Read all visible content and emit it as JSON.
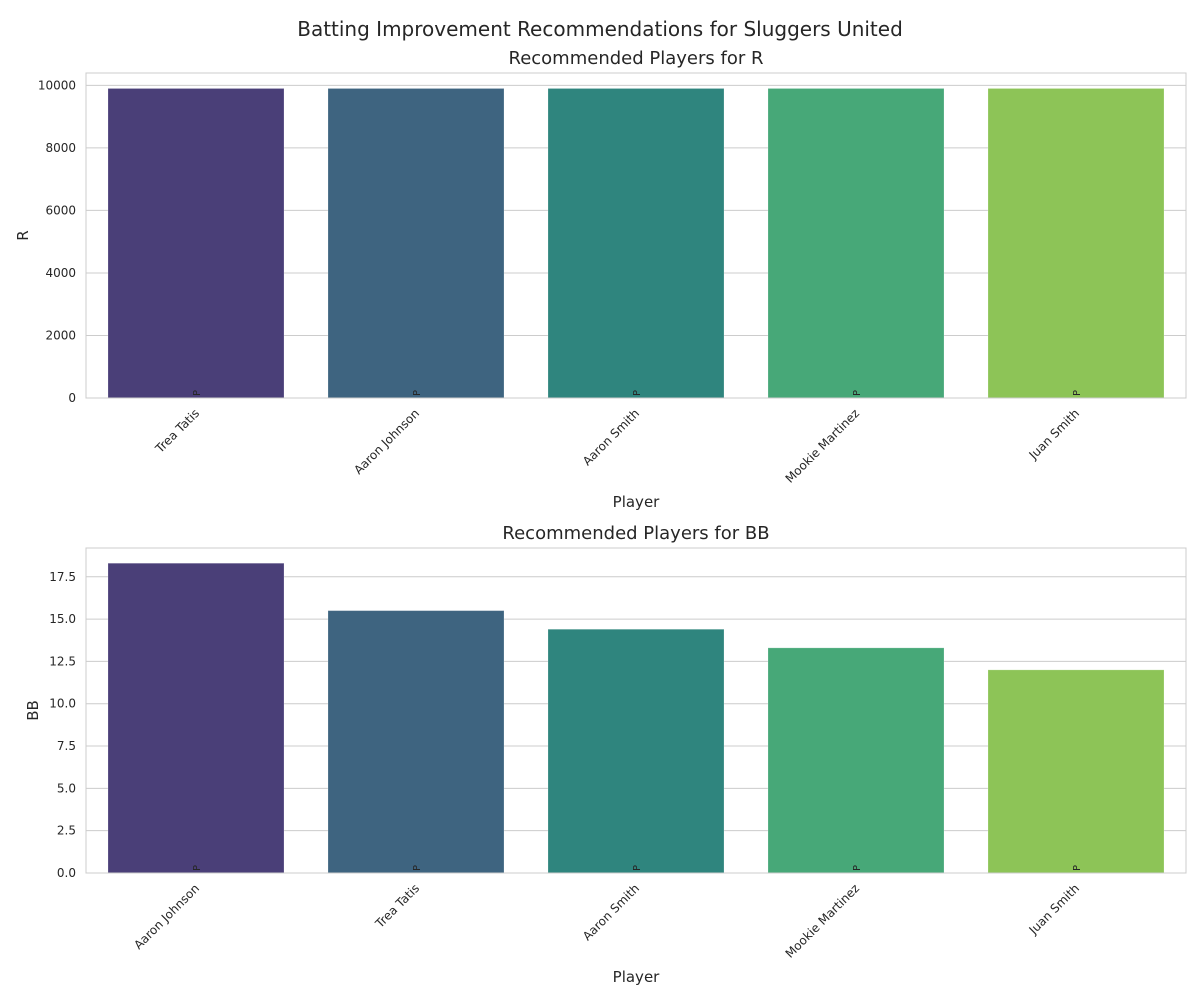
{
  "figure_title": "Batting Improvement Recommendations for Sluggers United",
  "chart_data": [
    {
      "type": "bar",
      "title": "Recommended Players for R",
      "xlabel": "Player",
      "ylabel": "R",
      "categories": [
        "Trea Tatis",
        "Aaron Johnson",
        "Aaron Smith",
        "Mookie Martinez",
        "Juan Smith"
      ],
      "values": [
        9900,
        9900,
        9900,
        9900,
        9900
      ],
      "bar_labels": [
        "P",
        "P",
        "P",
        "P",
        "P"
      ],
      "ylim": [
        0,
        10395
      ],
      "yticks": [
        0,
        2000,
        4000,
        6000,
        8000,
        10000
      ],
      "ytick_labels": [
        "0",
        "2000",
        "4000",
        "6000",
        "8000",
        "10000"
      ],
      "colors": [
        "#4a3f78",
        "#3e6480",
        "#2f857e",
        "#47a878",
        "#8dc457"
      ],
      "grid": true
    },
    {
      "type": "bar",
      "title": "Recommended Players for BB",
      "xlabel": "Player",
      "ylabel": "BB",
      "categories": [
        "Aaron Johnson",
        "Trea Tatis",
        "Aaron Smith",
        "Mookie Martinez",
        "Juan Smith"
      ],
      "values": [
        18.3,
        15.5,
        14.4,
        13.3,
        12.0
      ],
      "bar_labels": [
        "P",
        "P",
        "P",
        "P",
        "P"
      ],
      "ylim": [
        0,
        19.2
      ],
      "yticks": [
        0,
        2.5,
        5,
        7.5,
        10,
        12.5,
        15,
        17.5
      ],
      "ytick_labels": [
        "0.0",
        "2.5",
        "5.0",
        "7.5",
        "10.0",
        "12.5",
        "15.0",
        "17.5"
      ],
      "colors": [
        "#4a3f78",
        "#3e6480",
        "#2f857e",
        "#47a878",
        "#8dc457"
      ],
      "grid": true
    }
  ]
}
